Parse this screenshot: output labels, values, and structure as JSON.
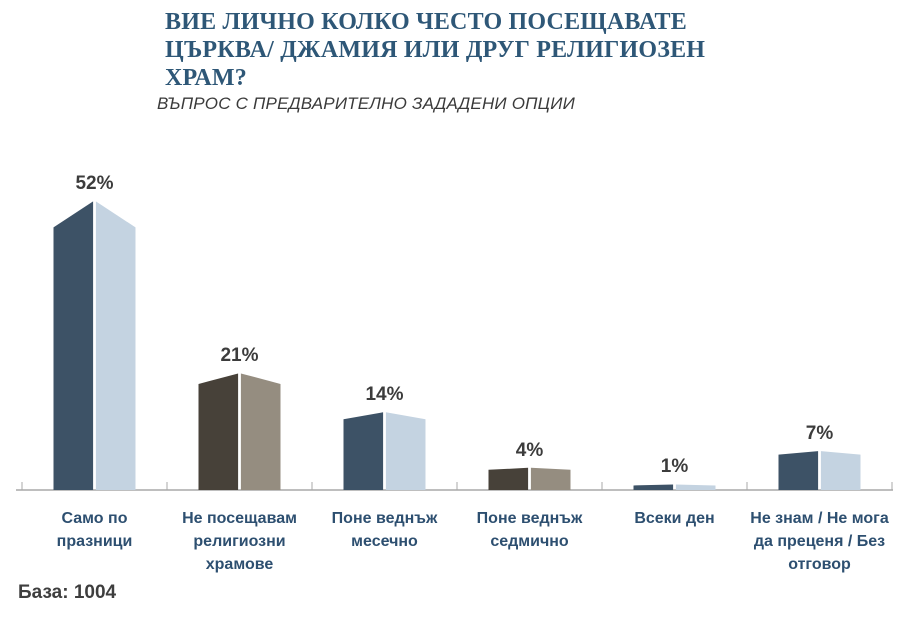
{
  "header": {
    "title_lines": [
      "ВИЕ ЛИЧНО КОЛКО ЧЕСТО ПОСЕЩАВАТЕ",
      "ЦЪРКВА/ ДЖАМИЯ ИЛИ ДРУГ РЕЛИГИОЗЕН",
      "ХРАМ?"
    ],
    "subtitle": "ВЪПРОС С ПРЕДВАРИТЕЛНО ЗАДАДЕНИ ОПЦИИ"
  },
  "chart_data": {
    "type": "bar",
    "style": "3d-prism-pairs",
    "title": "ВИЕ ЛИЧНО КОЛКО ЧЕСТО ПОСЕЩАВАТЕ ЦЪРКВА/ ДЖАМИЯ ИЛИ ДРУГ РЕЛИГИОЗЕН ХРАМ?",
    "subtitle": "ВЪПРОС С ПРЕДВАРИТЕЛНО ЗАДАДЕНИ ОПЦИИ",
    "categories": [
      "Само по празници",
      "Не посещавам религиозни храмове",
      "Поне веднъж месечно",
      "Поне веднъж седмично",
      "Всеки ден",
      "Не знам / Не мога да преценя / Без отговор"
    ],
    "values": [
      52,
      21,
      14,
      4,
      1,
      7
    ],
    "data_labels": [
      "52%",
      "21%",
      "14%",
      "4%",
      "1%",
      "7%"
    ],
    "colorway_per_bar": [
      "blue",
      "brown",
      "blue",
      "brown",
      "blue",
      "blue"
    ],
    "palette": {
      "blue": {
        "dark": "#3d5266",
        "light": "#c4d3e1"
      },
      "brown": {
        "dark": "#474139",
        "light": "#958d80"
      }
    },
    "axis_color": "#a8a8a8",
    "category_label_color": "#2d4f70",
    "value_label_color": "#3c3c3c",
    "xlabel": "",
    "ylabel": "",
    "ylim": [
      0,
      60
    ],
    "grid": false,
    "legend": false
  },
  "footer": {
    "base_note": "База: 1004"
  }
}
